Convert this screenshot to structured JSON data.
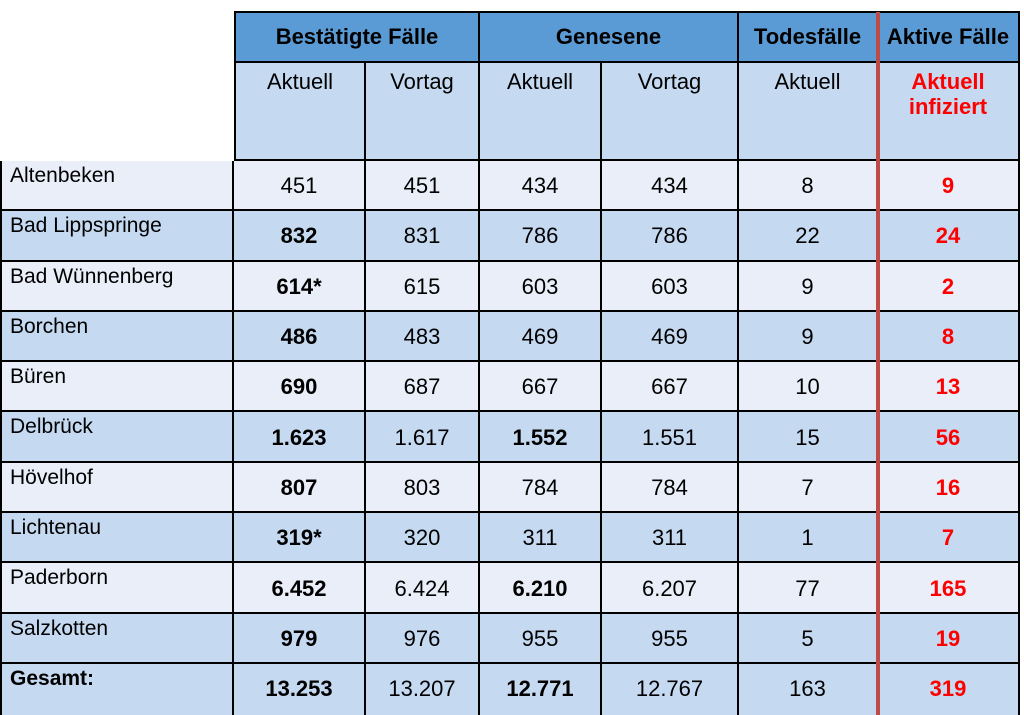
{
  "chart_data": {
    "type": "table",
    "col_groups": [
      {
        "label": "Bestätigte Fälle",
        "span": 2
      },
      {
        "label": "Genesene",
        "span": 2
      },
      {
        "label": "Todesfälle",
        "span": 1
      },
      {
        "label": "Aktive Fälle",
        "span": 1
      }
    ],
    "sub_headers": [
      "Aktuell",
      "Vortag",
      "Aktuell",
      "Vortag",
      "Aktuell",
      "Aktuell infiziert"
    ],
    "rows": [
      {
        "name": "Altenbeken",
        "values": [
          "451",
          "451",
          "434",
          "434",
          "8",
          "9"
        ]
      },
      {
        "name": "Bad Lippspringe",
        "values": [
          "832",
          "831",
          "786",
          "786",
          "22",
          "24"
        ]
      },
      {
        "name": "Bad Wünnenberg",
        "values": [
          "614*",
          "615",
          "603",
          "603",
          "9",
          "2"
        ]
      },
      {
        "name": "Borchen",
        "values": [
          "486",
          "483",
          "469",
          "469",
          "9",
          "8"
        ]
      },
      {
        "name": "Büren",
        "values": [
          "690",
          "687",
          "667",
          "667",
          "10",
          "13"
        ]
      },
      {
        "name": "Delbrück",
        "values": [
          "1.623",
          "1.617",
          "1.552",
          "1.551",
          "15",
          "56"
        ]
      },
      {
        "name": "Hövelhof",
        "values": [
          "807",
          "803",
          "784",
          "784",
          "7",
          "16"
        ]
      },
      {
        "name": "Lichtenau",
        "values": [
          "319*",
          "320",
          "311",
          "311",
          "1",
          "7"
        ]
      },
      {
        "name": "Paderborn",
        "values": [
          "6.452",
          "6.424",
          "6.210",
          "6.207",
          "77",
          "165"
        ]
      },
      {
        "name": "Salzkotten",
        "values": [
          "979",
          "976",
          "955",
          "955",
          "5",
          "19"
        ]
      },
      {
        "name": "Gesamt:",
        "values": [
          "13.253",
          "13.207",
          "12.771",
          "12.767",
          "163",
          "319"
        ]
      }
    ],
    "colors": {
      "group_header_bg": "#5B9BD5",
      "subheader_bg": "#C5D9F1",
      "row_light_bg": "#E9EEF8",
      "row_medium_bg": "#C5D9F1",
      "divider_line_red": "#BE4B48",
      "active_cases_text_red": "#FE0000",
      "border": "#000000"
    },
    "legend_position": "none",
    "grid": true
  }
}
